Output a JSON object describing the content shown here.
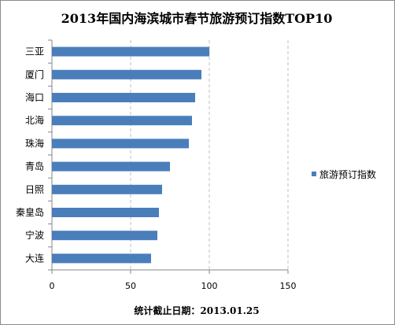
{
  "chart_data": {
    "type": "bar",
    "orientation": "horizontal",
    "title": "2013年国内海滨城市春节旅游预订指数TOP10",
    "categories": [
      "三亚",
      "厦门",
      "海口",
      "北海",
      "珠海",
      "青岛",
      "日照",
      "秦皇岛",
      "宁波",
      "大连"
    ],
    "series": [
      {
        "name": "旅游预订指数",
        "values": [
          100,
          95,
          91,
          89,
          87,
          75,
          70,
          68,
          67,
          63
        ],
        "color": "#4a7ebb"
      }
    ],
    "xlim": [
      0,
      150
    ],
    "xticks": [
      "0",
      "50",
      "100",
      "150"
    ],
    "grid": "vertical dashed",
    "legend_position": "right",
    "footnote": "统计截止日期：2013.01.25"
  }
}
